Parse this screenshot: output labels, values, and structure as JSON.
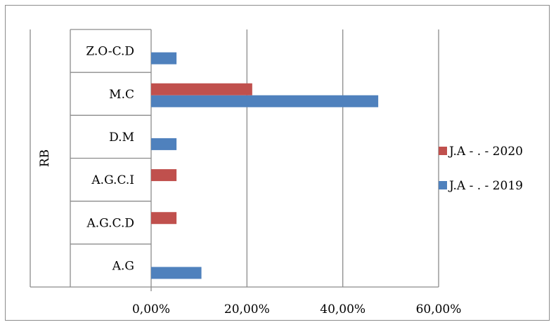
{
  "chart_data": {
    "type": "bar",
    "orientation": "horizontal",
    "ylabel": "RB",
    "categories": [
      "A.G",
      "A.G.C.D",
      "A.G.C.I",
      "D.M",
      "M.C",
      "Z.O-C.D"
    ],
    "series": [
      {
        "name": "J.A - . - 2019",
        "color": "#4f81bd",
        "values": [
          0.105,
          null,
          null,
          0.053,
          0.474,
          0.053
        ]
      },
      {
        "name": "J.A - . - 2020",
        "color": "#c0504d",
        "values": [
          null,
          0.053,
          0.053,
          null,
          0.211,
          null
        ]
      }
    ],
    "xlim": [
      0,
      0.6
    ],
    "xticks": [
      0,
      0.2,
      0.4,
      0.6
    ],
    "xtick_labels": [
      "0,00%",
      "20,00%",
      "40,00%",
      "60,00%"
    ],
    "grid": true,
    "legend_position": "right",
    "legend_order": [
      "J.A - . - 2020",
      "J.A - . - 2019"
    ]
  }
}
